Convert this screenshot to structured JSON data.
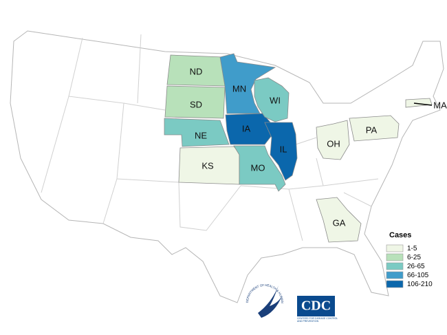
{
  "legend": {
    "title": "Cases",
    "items": [
      {
        "label": "1-5",
        "color": "#eff6e6"
      },
      {
        "label": "6-25",
        "color": "#b8e1ba"
      },
      {
        "label": "26-65",
        "color": "#7bcac3"
      },
      {
        "label": "66-105",
        "color": "#409cca"
      },
      {
        "label": "106-210",
        "color": "#0b67ac"
      }
    ]
  },
  "states": [
    {
      "label": "ND",
      "class": 1
    },
    {
      "label": "SD",
      "class": 1
    },
    {
      "label": "NE",
      "class": 2
    },
    {
      "label": "KS",
      "class": 0
    },
    {
      "label": "MN",
      "class": 3
    },
    {
      "label": "IA",
      "class": 4
    },
    {
      "label": "MO",
      "class": 2
    },
    {
      "label": "WI",
      "class": 2
    },
    {
      "label": "IL",
      "class": 4
    },
    {
      "label": "OH",
      "class": 0
    },
    {
      "label": "PA",
      "class": 0
    },
    {
      "label": "GA",
      "class": 0
    },
    {
      "label": "MA",
      "class": 0
    }
  ],
  "logos": {
    "hhs": "DEPARTMENT OF HEALTH & HUMAN SERVICES • USA",
    "cdc": "CDC",
    "cdc_sub": "CENTERS FOR DISEASE CONTROL AND PREVENTION"
  }
}
